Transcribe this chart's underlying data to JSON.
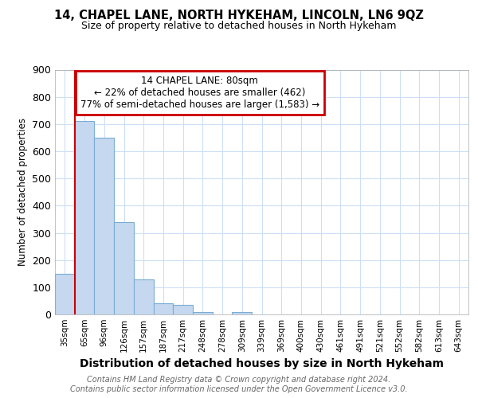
{
  "title1": "14, CHAPEL LANE, NORTH HYKEHAM, LINCOLN, LN6 9QZ",
  "title2": "Size of property relative to detached houses in North Hykeham",
  "xlabel": "Distribution of detached houses by size in North Hykeham",
  "ylabel": "Number of detached properties",
  "bins": [
    "35sqm",
    "65sqm",
    "96sqm",
    "126sqm",
    "157sqm",
    "187sqm",
    "217sqm",
    "248sqm",
    "278sqm",
    "309sqm",
    "339sqm",
    "369sqm",
    "400sqm",
    "430sqm",
    "461sqm",
    "491sqm",
    "521sqm",
    "552sqm",
    "582sqm",
    "613sqm",
    "643sqm"
  ],
  "values": [
    150,
    710,
    650,
    340,
    130,
    40,
    35,
    10,
    0,
    8,
    0,
    0,
    0,
    0,
    0,
    0,
    0,
    0,
    0,
    0,
    0
  ],
  "bar_color": "#c5d8f0",
  "bar_edge_color": "#7aadd4",
  "annotation_box_text": "14 CHAPEL LANE: 80sqm\n← 22% of detached houses are smaller (462)\n77% of semi-detached houses are larger (1,583) →",
  "annotation_box_color": "#cc0000",
  "property_line_color": "#cc0000",
  "property_line_bin_index": 1,
  "grid_color": "#ccdff5",
  "background_color": "#ffffff",
  "footer_text": "Contains HM Land Registry data © Crown copyright and database right 2024.\nContains public sector information licensed under the Open Government Licence v3.0.",
  "ylim": [
    0,
    900
  ],
  "yticks": [
    0,
    100,
    200,
    300,
    400,
    500,
    600,
    700,
    800,
    900
  ]
}
